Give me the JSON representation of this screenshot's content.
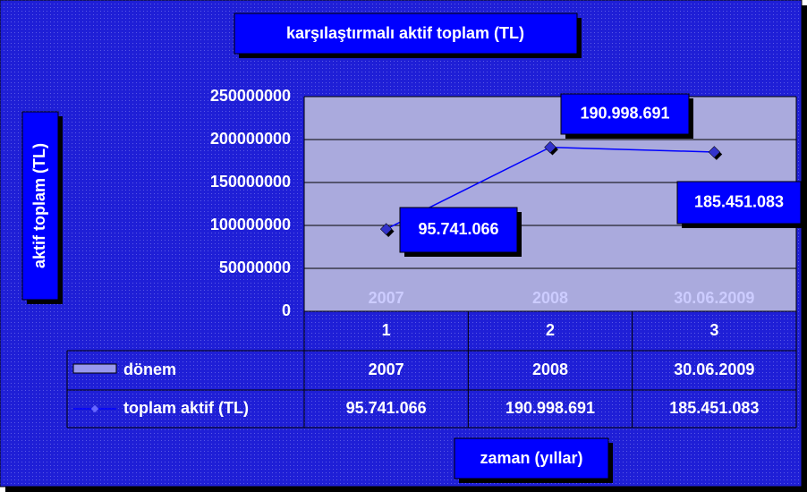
{
  "chart_data": {
    "type": "line",
    "title": "karşılaştırmalı aktif toplam (TL)",
    "y_label": "aktif toplam (TL)",
    "x_label": "zaman (yıllar)",
    "categories": [
      "1",
      "2",
      "3"
    ],
    "series": [
      {
        "name": "dönem",
        "color": "#9999ee",
        "labels": [
          "2007",
          "2008",
          "30.06.2009"
        ]
      },
      {
        "name": "toplam aktif (TL)",
        "color": "#0000ff",
        "values": [
          95741066,
          190998691,
          185451083
        ],
        "value_labels": [
          "95.741.066",
          "190.998.691",
          "185.451.083"
        ]
      }
    ],
    "ylim": [
      0,
      250000000
    ],
    "yticks": [
      0,
      50000000,
      100000000,
      150000000,
      200000000,
      250000000
    ],
    "grid": true
  }
}
